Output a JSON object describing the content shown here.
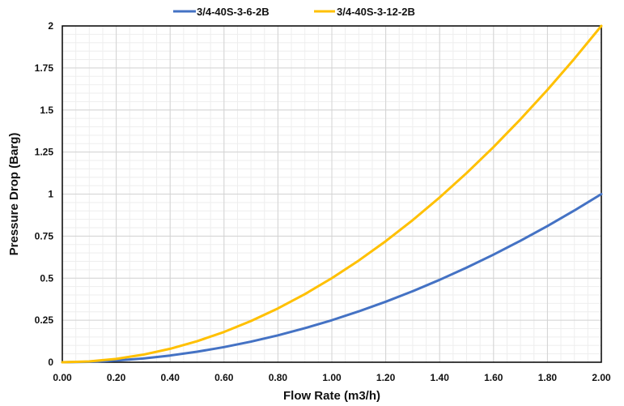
{
  "chart_data": {
    "type": "line",
    "title": "",
    "xlabel": "Flow Rate (m3/h)",
    "ylabel": "Pressure Drop (Barg)",
    "xlim": [
      0,
      2
    ],
    "ylim": [
      0,
      2
    ],
    "x_ticks": [
      "0.00",
      "0.20",
      "0.40",
      "0.60",
      "0.80",
      "1.00",
      "1.20",
      "1.40",
      "1.60",
      "1.80",
      "2.00"
    ],
    "y_ticks": [
      "0",
      "0.25",
      "0.5",
      "0.75",
      "1",
      "1.25",
      "1.5",
      "1.75",
      "2"
    ],
    "grid": true,
    "legend_position": "top",
    "series": [
      {
        "name": "3/4-40S-3-6-2B",
        "color": "#4472C4",
        "x": [
          0.0,
          0.1,
          0.2,
          0.3,
          0.4,
          0.5,
          0.6,
          0.7,
          0.8,
          0.9,
          1.0,
          1.1,
          1.2,
          1.3,
          1.4,
          1.5,
          1.6,
          1.7,
          1.8,
          1.9,
          2.0
        ],
        "y": [
          0.0,
          0.0025,
          0.01,
          0.0225,
          0.04,
          0.0625,
          0.09,
          0.1225,
          0.16,
          0.2025,
          0.25,
          0.3025,
          0.36,
          0.4225,
          0.49,
          0.5625,
          0.64,
          0.7225,
          0.81,
          0.9025,
          1.0
        ]
      },
      {
        "name": "3/4-40S-3-12-2B",
        "color": "#FFC000",
        "x": [
          0.0,
          0.1,
          0.2,
          0.3,
          0.4,
          0.5,
          0.6,
          0.7,
          0.8,
          0.9,
          1.0,
          1.1,
          1.2,
          1.3,
          1.4,
          1.5,
          1.6,
          1.7,
          1.8,
          1.9,
          2.0
        ],
        "y": [
          0.0,
          0.005,
          0.02,
          0.045,
          0.08,
          0.125,
          0.18,
          0.245,
          0.32,
          0.405,
          0.5,
          0.605,
          0.72,
          0.845,
          0.98,
          1.125,
          1.28,
          1.445,
          1.62,
          1.805,
          2.0
        ]
      }
    ]
  }
}
